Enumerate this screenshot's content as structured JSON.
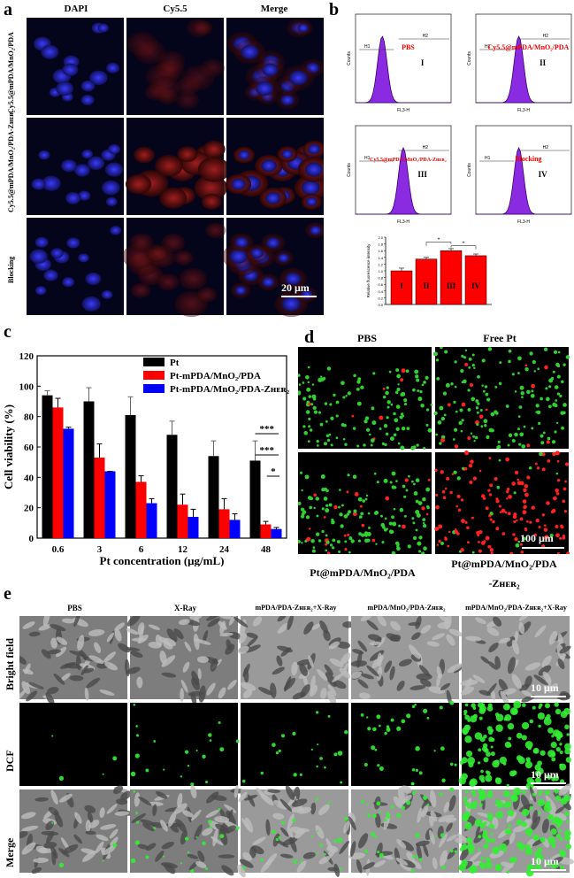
{
  "panels": {
    "a": "a",
    "b": "b",
    "c": "c",
    "d": "d",
    "e": "e"
  },
  "panel_a": {
    "col_headers": [
      "DAPI",
      "Cy5.5",
      "Merge"
    ],
    "row_labels": [
      "Cy5.5@mPDA/MnO₂/PDA",
      "Cy5.5@mPDA/MnO₂/PDA-Zʜᴇʀ₂",
      "Blocking"
    ],
    "scale": "20 μm"
  },
  "panel_b": {
    "histos": [
      {
        "name": "PBS",
        "roman": "I"
      },
      {
        "name": "Cy5.5@mPDA/MnO₂/PDA",
        "roman": "II"
      },
      {
        "name": "Cy5.5@mPDA/MnO₂/PDA-Zʜᴇʀ₂",
        "roman": "III"
      },
      {
        "name": "Blocking",
        "roman": "IV"
      }
    ],
    "h1": "H1",
    "h2": "H2",
    "xaxis": "FL3-H",
    "yaxis": "Counts",
    "bar_chart": {
      "ylabel": "Relative fluorescence intensity",
      "ylim": [
        0,
        2.0
      ],
      "categories": [
        "I",
        "II",
        "III",
        "IV"
      ],
      "values": [
        1.0,
        1.35,
        1.6,
        1.45
      ],
      "errors": [
        0.08,
        0.05,
        0.06,
        0.05
      ],
      "sig": "*"
    }
  },
  "chart_data": {
    "type": "bar",
    "ylabel": "Cell viability (%)",
    "xlabel": "Pt concentration (μg/mL)",
    "ylim": [
      0,
      120
    ],
    "yticks": [
      0,
      20,
      40,
      60,
      80,
      100,
      120
    ],
    "categories": [
      "0.6",
      "3",
      "6",
      "12",
      "24",
      "48"
    ],
    "series": [
      {
        "name": "Pt",
        "color": "#000000",
        "values": [
          94,
          90,
          81,
          68,
          54,
          51
        ],
        "errors": [
          3,
          9,
          12,
          9,
          10,
          13
        ]
      },
      {
        "name": "Pt-mPDA/MnO₂/PDA",
        "color": "#ff0000",
        "values": [
          86,
          53,
          37,
          22,
          19,
          9
        ],
        "errors": [
          6,
          9,
          4,
          7,
          7,
          2
        ]
      },
      {
        "name": "Pt-mPDA/MnO₂/PDA-Zʜᴇʀ₂",
        "color": "#0000ff",
        "values": [
          72,
          44,
          23,
          14,
          12,
          6
        ],
        "errors": [
          1,
          0,
          3,
          5,
          4,
          1
        ]
      }
    ],
    "significance": [
      "***",
      "***",
      "*"
    ]
  },
  "panel_d": {
    "top_labels": [
      "PBS",
      "Free Pt"
    ],
    "bottom_labels": [
      "Pt@mPDA/MnO₂/PDA",
      "Pt@mPDA/MnO₂/PDA"
    ],
    "bottom_label2": "-Zʜᴇʀ₂",
    "scale": "100 μm"
  },
  "panel_e": {
    "col_headers": [
      "PBS",
      "X-Ray",
      "mPDA/PDA-Zʜᴇʀ₂+X-Ray",
      "mPDA/MnO₂/PDA-Zʜᴇʀ₂",
      "mPDA/MnO₂/PDA-Zʜᴇʀ₂+X-Ray"
    ],
    "row_labels": [
      "Bright field",
      "DCF",
      "Merge"
    ],
    "scale": "10 μm"
  }
}
